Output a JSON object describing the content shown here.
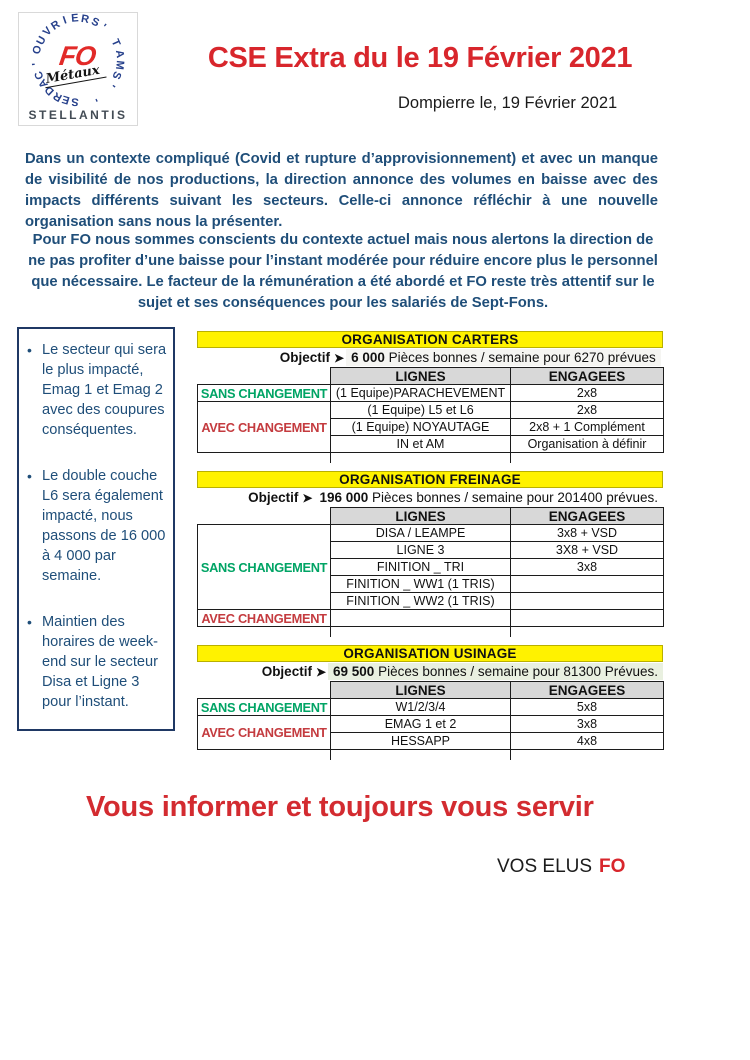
{
  "logo": {
    "ring_words": [
      "OUVRIERS",
      "TAMS",
      "CADRES"
    ],
    "tick": "'",
    "fo": "FO",
    "metaux": "Métaux",
    "brand": "STELLANTIS"
  },
  "header": {
    "title": "CSE Extra du le 19 Février 2021",
    "dateline": "Dompierre le, 19 Février 2021"
  },
  "intro": {
    "paragraph1": "Dans un contexte compliqué (Covid et rupture d’approvisionnement) et avec un manque de visibilité de nos productions,  la direction annonce des volumes en baisse avec des impacts différents suivant les secteurs. Celle-ci annonce réfléchir à une  nouvelle organisation sans nous la présenter.",
    "paragraph2": "Pour FO nous sommes conscients du contexte actuel mais nous alertons la direction  de ne pas profiter d’une baisse pour l’instant modérée pour réduire encore plus le personnel que nécessaire. Le facteur de la rémunération a été abordé et FO  reste très attentif sur le sujet et ses conséquences pour les salariés de Sept-Fons."
  },
  "sidebar": {
    "items": [
      "Le secteur qui sera le plus impacté, Emag 1 et Emag 2 avec des coupures conséquentes.",
      "Le double couche L6 sera également impacté, nous passons de 16 000 à 4 000  par semaine.",
      "Maintien des horaires de week-end sur le secteur Disa et Ligne 3 pour l’instant."
    ]
  },
  "tables": [
    {
      "title": "ORGANISATION CARTERS",
      "objective_label": "Objectif",
      "objective_value": "6 000",
      "objective_text": "Pièces bonnes  / semaine pour 6270 prévues",
      "objective_bg": "#f5f5f2",
      "columns": [
        "LIGNES",
        "ENGAGEES"
      ],
      "groups": [
        {
          "label": "SANS CHANGEMENT",
          "color": "green",
          "rows": [
            [
              "(1 Equipe)PARACHEVEMENT",
              "2x8"
            ]
          ]
        },
        {
          "label": "AVEC CHANGEMENT",
          "color": "red",
          "rows": [
            [
              "(1 Equipe) L5 et L6",
              "2x8"
            ],
            [
              "(1 Equipe) NOYAUTAGE",
              "2x8 + 1 Complément"
            ],
            [
              "IN et AM",
              "Organisation à définir"
            ]
          ]
        }
      ]
    },
    {
      "title": "ORGANISATION FREINAGE",
      "objective_label": "Objectif",
      "objective_value": "196 000",
      "objective_text": "Pièces bonnes  / semaine pour 201400 prévues.",
      "objective_bg": "",
      "columns": [
        "LIGNES",
        "ENGAGEES"
      ],
      "groups": [
        {
          "label": "SANS CHANGEMENT",
          "color": "green",
          "rows": [
            [
              "DISA / LEAMPE",
              "3x8 + VSD"
            ],
            [
              "LIGNE 3",
              "3X8 + VSD"
            ],
            [
              "FINITION _ TRI",
              "3x8"
            ],
            [
              "FINITION _ WW1 (1 TRIS)",
              ""
            ],
            [
              "FINITION _ WW2 (1 TRIS)",
              ""
            ]
          ]
        },
        {
          "label": "AVEC CHANGEMENT",
          "color": "red",
          "rows": [
            [
              "",
              ""
            ]
          ]
        }
      ]
    },
    {
      "title": "ORGANISATION USINAGE",
      "objective_label": "Objectif",
      "objective_value": "69 500",
      "objective_text": "Pièces bonnes  / semaine pour 81300 Prévues.",
      "objective_bg": "#e9f0e0",
      "columns": [
        "LIGNES",
        "ENGAGEES"
      ],
      "groups": [
        {
          "label": "SANS CHANGEMENT",
          "color": "green",
          "rows": [
            [
              "W1/2/3/4",
              "5x8"
            ]
          ]
        },
        {
          "label": "AVEC CHANGEMENT",
          "color": "red",
          "rows": [
            [
              "EMAG 1 et 2",
              "3x8"
            ],
            [
              "HESSAPP",
              "4x8"
            ]
          ]
        }
      ]
    }
  ],
  "footer": {
    "slogan": "Vous informer et toujours vous servir",
    "signoff_prefix": "VOS ELUS",
    "signoff_brand": "FO"
  },
  "colors": {
    "accent_red": "#d8262c",
    "text_blue": "#1f4e79",
    "label_green": "#00a465",
    "label_red": "#c43b3f",
    "banner_yellow": "#fff200",
    "header_grey": "#d8d8d8"
  }
}
